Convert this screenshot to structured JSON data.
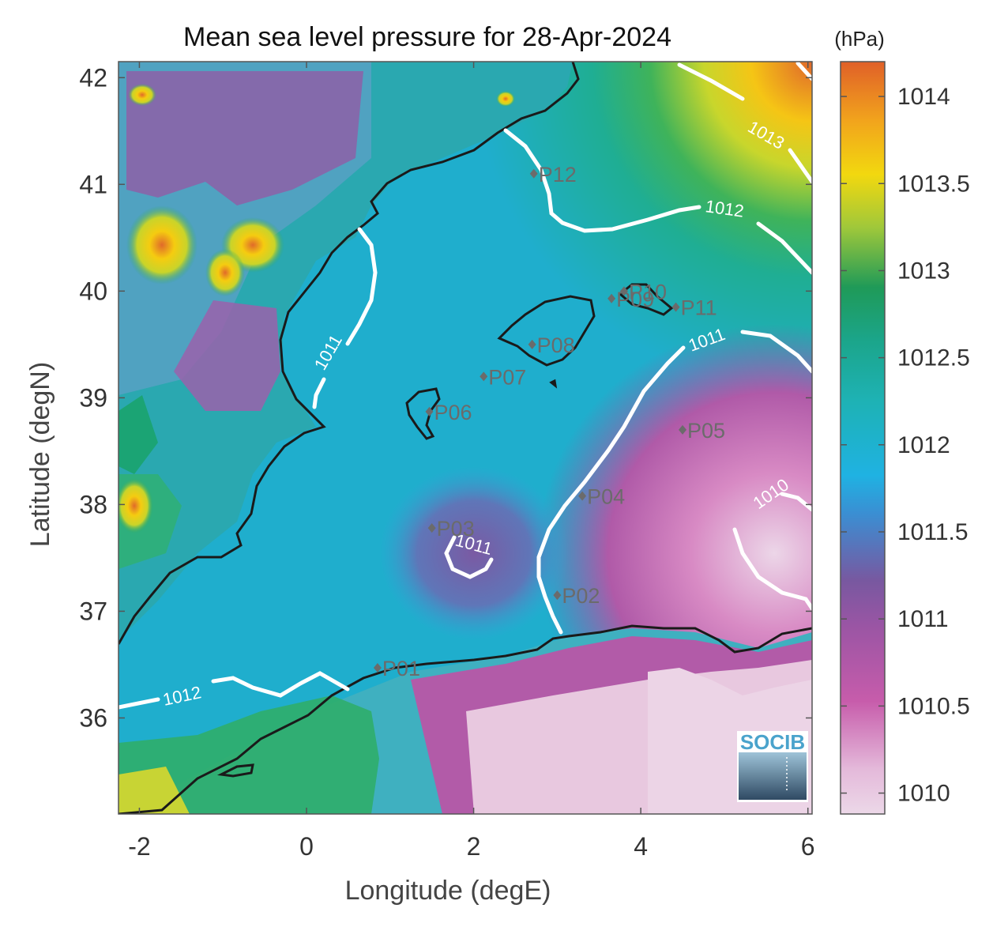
{
  "title": "Mean sea level pressure for 28-Apr-2024",
  "x_axis": {
    "label": "Longitude (degE)",
    "ticks": [
      -2,
      0,
      2,
      4,
      6
    ],
    "tick_labels": [
      "-2",
      "0",
      "2",
      "4",
      "6"
    ],
    "range": [
      -2.25,
      6.05
    ]
  },
  "y_axis": {
    "label": "Latitude (degN)",
    "ticks": [
      36,
      37,
      38,
      39,
      40,
      41,
      42
    ],
    "tick_labels": [
      "36",
      "37",
      "38",
      "39",
      "40",
      "41",
      "42"
    ],
    "range": [
      35.1,
      42.15
    ]
  },
  "colorbar": {
    "unit": "(hPa)",
    "range": [
      1009.88,
      1014.2
    ],
    "ticks": [
      1010,
      1010.5,
      1011,
      1011.5,
      1012,
      1012.5,
      1013,
      1013.5,
      1014
    ],
    "tick_labels": [
      "1010",
      "1010.5",
      "1011",
      "1011.5",
      "1012",
      "1012.5",
      "1013",
      "1013.5",
      "1014"
    ],
    "colors": [
      "#ead0e3",
      "#c455a8",
      "#7d55a0",
      "#1fb0e0",
      "#1cb3a0",
      "#1a9a5a",
      "#c9d42a",
      "#f5cc10",
      "#e06a2a"
    ]
  },
  "stations": [
    {
      "name": "P01",
      "lon": 0.85,
      "lat": 36.47
    },
    {
      "name": "P02",
      "lon": 3.0,
      "lat": 37.15
    },
    {
      "name": "P03",
      "lon": 1.5,
      "lat": 37.78
    },
    {
      "name": "P04",
      "lon": 3.3,
      "lat": 38.08
    },
    {
      "name": "P05",
      "lon": 4.5,
      "lat": 38.7
    },
    {
      "name": "P06",
      "lon": 1.47,
      "lat": 38.87
    },
    {
      "name": "P07",
      "lon": 2.12,
      "lat": 39.2
    },
    {
      "name": "P08",
      "lon": 2.7,
      "lat": 39.5
    },
    {
      "name": "P09",
      "lon": 3.65,
      "lat": 39.93
    },
    {
      "name": "P10",
      "lon": 3.8,
      "lat": 40.0
    },
    {
      "name": "P11",
      "lon": 4.42,
      "lat": 39.85
    },
    {
      "name": "P12",
      "lon": 2.72,
      "lat": 41.1
    }
  ],
  "contour_labels": [
    "1010",
    "1011",
    "1011",
    "1011",
    "1012",
    "1012",
    "1013"
  ],
  "logo_text": "SOCIB",
  "colors": {
    "coast": "#1a1a1a",
    "contour": "#ffffff",
    "marker": "#6b6b6b"
  }
}
